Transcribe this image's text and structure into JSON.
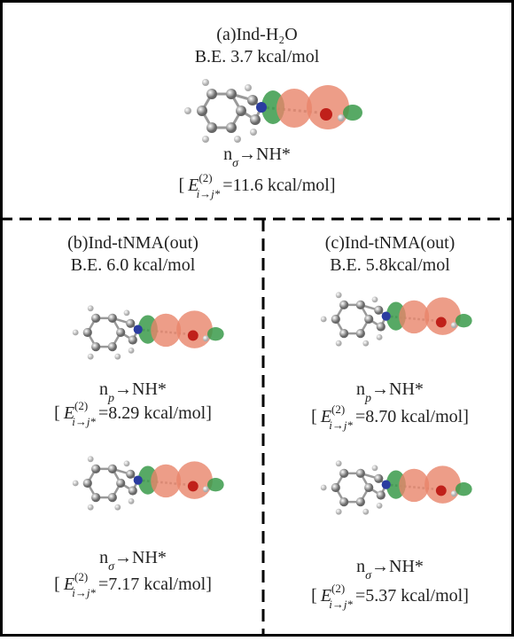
{
  "panels": [
    {
      "title": "(a)Ind-H₂O",
      "binding_energy": "B.E. 3.7 kcal/mol",
      "interactions": [
        {
          "orbital": "n",
          "orbital_sub": "σ",
          "transition": "→NH*",
          "open": "[",
          "symbol": "E",
          "sup": "(2)",
          "sub": "i→j*",
          "value": "=11.6 kcal/mol]"
        }
      ]
    },
    {
      "title": "(b)Ind-tNMA(out)",
      "binding_energy": "B.E. 6.0 kcal/mol",
      "interactions": [
        {
          "orbital": "n",
          "orbital_sub": "p",
          "transition": "→NH*",
          "open": "[",
          "symbol": "E",
          "sup": "(2)",
          "sub": "i→j*",
          "value": "=8.29 kcal/mol]"
        },
        {
          "orbital": "n",
          "orbital_sub": "σ",
          "transition": "→NH*",
          "open": "[",
          "symbol": "E",
          "sup": "(2)",
          "sub": "i→j*",
          "value": "=7.17 kcal/mol]"
        }
      ]
    },
    {
      "title": "(c)Ind-tNMA(out)",
      "binding_energy": "B.E. 5.8kcal/mol",
      "interactions": [
        {
          "orbital": "n",
          "orbital_sub": "p",
          "transition": "→NH*",
          "open": "[",
          "symbol": "E",
          "sup": "(2)",
          "sub": "i→j*",
          "value": "=8.70 kcal/mol]"
        },
        {
          "orbital": "n",
          "orbital_sub": "σ",
          "transition": "→NH*",
          "open": "[",
          "symbol": "E",
          "sup": "(2)",
          "sub": "i→j*",
          "value": "=5.37 kcal/mol]"
        }
      ]
    }
  ]
}
